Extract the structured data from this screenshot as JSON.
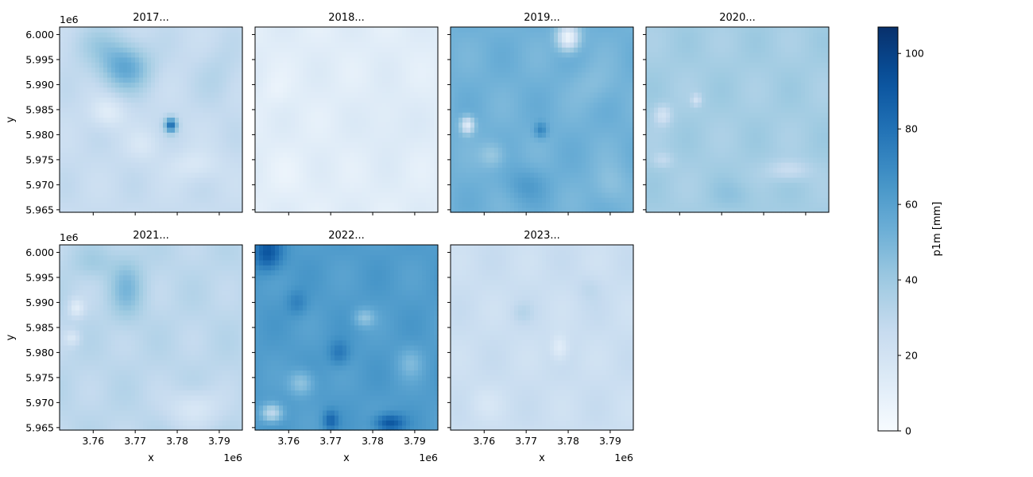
{
  "chart_data": {
    "type": "heatmap",
    "colormap": "Blues",
    "colorbar": {
      "label": "p1m [mm]",
      "range": [
        0,
        107
      ],
      "ticks": [
        0,
        20,
        40,
        60,
        80,
        100
      ]
    },
    "xlabel": "x",
    "ylabel": "y",
    "xlim": [
      3752000,
      3795500
    ],
    "ylim": [
      5964500,
      6001500
    ],
    "x_ticks": [
      3760000,
      3770000,
      3780000,
      3790000
    ],
    "x_tick_labels": [
      "3.76",
      "3.77",
      "3.78",
      "3.79"
    ],
    "x_offset_label": "1e6",
    "y_ticks": [
      5965000,
      5970000,
      5975000,
      5980000,
      5985000,
      5990000,
      5995000,
      6000000
    ],
    "y_tick_labels": [
      "5.965",
      "5.970",
      "5.975",
      "5.980",
      "5.985",
      "5.990",
      "5.995",
      "6.000"
    ],
    "y_offset_label": "1e6",
    "panels": [
      {
        "title": "2017...",
        "base": 26,
        "blobs": [
          {
            "x": 3767500,
            "y": 5993500,
            "sx": 6000,
            "sy": 4500,
            "a": 30
          },
          {
            "x": 3778500,
            "y": 5982000,
            "sx": 1400,
            "sy": 1400,
            "a": 55
          },
          {
            "x": 3761000,
            "y": 5998000,
            "sx": 7000,
            "sy": 4000,
            "a": 10
          },
          {
            "x": 3790000,
            "y": 5992000,
            "sx": 5000,
            "sy": 6000,
            "a": 6
          },
          {
            "x": 3763500,
            "y": 5984500,
            "sx": 4000,
            "sy": 3000,
            "a": -14
          },
          {
            "x": 3772000,
            "y": 5978000,
            "sx": 4000,
            "sy": 3000,
            "a": -8
          },
          {
            "x": 3784000,
            "y": 5974000,
            "sx": 6000,
            "sy": 3000,
            "a": -10
          }
        ]
      },
      {
        "title": "2018...",
        "base": 12,
        "blobs": [
          {
            "x": 3757000,
            "y": 5989000,
            "sx": 3000,
            "sy": 3000,
            "a": -4
          },
          {
            "x": 3784000,
            "y": 5982000,
            "sx": 6000,
            "sy": 6000,
            "a": 4
          },
          {
            "x": 3760000,
            "y": 5972000,
            "sx": 6000,
            "sy": 5000,
            "a": -3
          }
        ]
      },
      {
        "title": "2019...",
        "base": 52,
        "blobs": [
          {
            "x": 3780000,
            "y": 5999500,
            "sx": 2500,
            "sy": 2500,
            "a": -48
          },
          {
            "x": 3756000,
            "y": 5982000,
            "sx": 1600,
            "sy": 1600,
            "a": -40
          },
          {
            "x": 3773500,
            "y": 5981000,
            "sx": 1500,
            "sy": 1500,
            "a": 20
          },
          {
            "x": 3770000,
            "y": 5970000,
            "sx": 5000,
            "sy": 3500,
            "a": 10
          },
          {
            "x": 3762000,
            "y": 5976000,
            "sx": 3000,
            "sy": 2500,
            "a": -12
          },
          {
            "x": 3786000,
            "y": 5990000,
            "sx": 5000,
            "sy": 4000,
            "a": -6
          },
          {
            "x": 3790000,
            "y": 5970000,
            "sx": 4000,
            "sy": 4000,
            "a": -8
          }
        ]
      },
      {
        "title": "2020...",
        "base": 38,
        "blobs": [
          {
            "x": 3756000,
            "y": 5984000,
            "sx": 2000,
            "sy": 2000,
            "a": -18
          },
          {
            "x": 3764000,
            "y": 5987000,
            "sx": 1200,
            "sy": 1200,
            "a": -16
          },
          {
            "x": 3756000,
            "y": 5975000,
            "sx": 2500,
            "sy": 1500,
            "a": -10
          },
          {
            "x": 3786000,
            "y": 5973000,
            "sx": 5000,
            "sy": 2000,
            "a": -14
          },
          {
            "x": 3774000,
            "y": 5968000,
            "sx": 6000,
            "sy": 3000,
            "a": 5
          }
        ]
      },
      {
        "title": "2021...",
        "base": 30,
        "blobs": [
          {
            "x": 3768000,
            "y": 5993000,
            "sx": 4000,
            "sy": 6000,
            "a": 18
          },
          {
            "x": 3756000,
            "y": 5989000,
            "sx": 1800,
            "sy": 1800,
            "a": -18
          },
          {
            "x": 3755000,
            "y": 5983000,
            "sx": 1800,
            "sy": 1500,
            "a": -14
          },
          {
            "x": 3784000,
            "y": 5969000,
            "sx": 6000,
            "sy": 3500,
            "a": -14
          },
          {
            "x": 3760000,
            "y": 5998000,
            "sx": 5000,
            "sy": 3000,
            "a": 8
          }
        ]
      },
      {
        "title": "2022...",
        "base": 62,
        "blobs": [
          {
            "x": 3755000,
            "y": 6000000,
            "sx": 3500,
            "sy": 3500,
            "a": 30
          },
          {
            "x": 3784000,
            "y": 5966000,
            "sx": 3500,
            "sy": 1800,
            "a": 30
          },
          {
            "x": 3770000,
            "y": 5966500,
            "sx": 1800,
            "sy": 2000,
            "a": 22
          },
          {
            "x": 3756000,
            "y": 5968000,
            "sx": 2500,
            "sy": 1800,
            "a": -35
          },
          {
            "x": 3763000,
            "y": 5974000,
            "sx": 3000,
            "sy": 2500,
            "a": -20
          },
          {
            "x": 3778000,
            "y": 5987000,
            "sx": 2500,
            "sy": 1800,
            "a": -18
          },
          {
            "x": 3789000,
            "y": 5978000,
            "sx": 3000,
            "sy": 3000,
            "a": -12
          },
          {
            "x": 3772000,
            "y": 5980000,
            "sx": 2500,
            "sy": 2500,
            "a": 16
          },
          {
            "x": 3762000,
            "y": 5990000,
            "sx": 2500,
            "sy": 2500,
            "a": 12
          }
        ]
      },
      {
        "title": "2023...",
        "base": 24,
        "blobs": [
          {
            "x": 3778000,
            "y": 5981000,
            "sx": 2000,
            "sy": 2500,
            "a": -14
          },
          {
            "x": 3769000,
            "y": 5988000,
            "sx": 2500,
            "sy": 2000,
            "a": 6
          },
          {
            "x": 3785000,
            "y": 5993000,
            "sx": 3000,
            "sy": 2500,
            "a": 5
          },
          {
            "x": 3760000,
            "y": 5970000,
            "sx": 4000,
            "sy": 3000,
            "a": -5
          }
        ]
      }
    ]
  }
}
